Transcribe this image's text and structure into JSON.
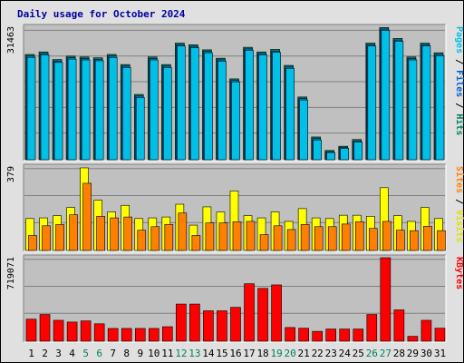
{
  "title": "Daily usage for October 2024",
  "days": [
    "1",
    "2",
    "3",
    "4",
    "5",
    "6",
    "7",
    "8",
    "9",
    "10",
    "11",
    "12",
    "13",
    "14",
    "15",
    "16",
    "17",
    "18",
    "19",
    "20",
    "21",
    "22",
    "23",
    "24",
    "25",
    "26",
    "27",
    "28",
    "29",
    "30",
    "31"
  ],
  "weekend_days": [
    "5",
    "6",
    "12",
    "13",
    "19",
    "20",
    "26",
    "27"
  ],
  "colors": {
    "background": "#e0e0e0",
    "panel": "#c0c0c0",
    "grid": "#808080",
    "pages": "#00c0e8",
    "pages_edge": "#0060a0",
    "files": "#0080ff",
    "hits": "#00805c",
    "sites": "#ff8000",
    "visits": "#ffff00",
    "kbytes": "#ff0000",
    "weekday_label": "#000000",
    "weekend_label": "#008060"
  },
  "right_labels": {
    "hits_panel": [
      {
        "text": "Pages",
        "color": "#00c0e8"
      },
      {
        "text": " / ",
        "color": "#000000"
      },
      {
        "text": "Files",
        "color": "#0060d0"
      },
      {
        "text": " / ",
        "color": "#000000"
      },
      {
        "text": "Hits",
        "color": "#008060"
      }
    ],
    "visits_panel": [
      {
        "text": "Sites",
        "color": "#ff8000"
      },
      {
        "text": " / ",
        "color": "#000000"
      },
      {
        "text": "Visits",
        "color": "#e0e000"
      }
    ],
    "kbytes_panel": [
      {
        "text": "KBytes",
        "color": "#ff0000"
      }
    ]
  },
  "chart_data": [
    {
      "type": "bar",
      "name": "hits-files-pages",
      "ymax_label": "31463",
      "ylim": [
        0,
        31463
      ],
      "categories": [
        "1",
        "2",
        "3",
        "4",
        "5",
        "6",
        "7",
        "8",
        "9",
        "10",
        "11",
        "12",
        "13",
        "14",
        "15",
        "16",
        "17",
        "18",
        "19",
        "20",
        "21",
        "22",
        "23",
        "24",
        "25",
        "26",
        "27",
        "28",
        "29",
        "30",
        "31"
      ],
      "series": [
        {
          "name": "Hits",
          "values": [
            25000,
            25600,
            23800,
            24600,
            24400,
            24200,
            25000,
            22600,
            15500,
            24400,
            22600,
            27700,
            27300,
            26100,
            24100,
            19200,
            26700,
            25600,
            26200,
            22400,
            14900,
            5400,
            2200,
            3200,
            4800,
            27700,
            31400,
            28800,
            24400,
            27700,
            25400
          ]
        },
        {
          "name": "Files",
          "values": [
            24600,
            25200,
            23400,
            24200,
            24000,
            23800,
            24600,
            22200,
            15100,
            24000,
            22200,
            27300,
            26900,
            25700,
            23700,
            18800,
            26300,
            25200,
            25800,
            22000,
            14500,
            5000,
            1900,
            2900,
            4400,
            27300,
            31000,
            28400,
            24000,
            27300,
            25000
          ]
        },
        {
          "name": "Pages",
          "values": [
            24300,
            24900,
            23100,
            23900,
            23700,
            23500,
            24300,
            21900,
            14800,
            23700,
            21900,
            27000,
            26600,
            25400,
            23400,
            18500,
            26000,
            24900,
            25500,
            21700,
            14200,
            4700,
            1700,
            2700,
            4200,
            27000,
            30700,
            28100,
            23700,
            27000,
            24700
          ]
        }
      ]
    },
    {
      "type": "bar",
      "name": "visits-sites",
      "ymax_label": "379",
      "ylim": [
        0,
        379
      ],
      "categories": [
        "1",
        "2",
        "3",
        "4",
        "5",
        "6",
        "7",
        "8",
        "9",
        "10",
        "11",
        "12",
        "13",
        "14",
        "15",
        "16",
        "17",
        "18",
        "19",
        "20",
        "21",
        "22",
        "23",
        "24",
        "25",
        "26",
        "27",
        "28",
        "29",
        "30",
        "31"
      ],
      "series": [
        {
          "name": "Visits",
          "values": [
            145,
            148,
            158,
            195,
            375,
            228,
            175,
            205,
            145,
            148,
            152,
            210,
            115,
            198,
            175,
            270,
            158,
            148,
            175,
            132,
            190,
            148,
            145,
            160,
            160,
            155,
            285,
            158,
            132,
            195,
            145
          ]
        },
        {
          "name": "Sites",
          "values": [
            68,
            112,
            118,
            162,
            305,
            155,
            148,
            152,
            92,
            108,
            118,
            170,
            68,
            125,
            125,
            130,
            132,
            72,
            112,
            95,
            118,
            108,
            108,
            120,
            130,
            100,
            132,
            92,
            90,
            110,
            90
          ]
        }
      ]
    },
    {
      "type": "bar",
      "name": "kbytes",
      "ymax_label": "719071",
      "ylim": [
        0,
        719071
      ],
      "categories": [
        "1",
        "2",
        "3",
        "4",
        "5",
        "6",
        "7",
        "8",
        "9",
        "10",
        "11",
        "12",
        "13",
        "14",
        "15",
        "16",
        "17",
        "18",
        "19",
        "20",
        "21",
        "22",
        "23",
        "24",
        "25",
        "26",
        "27",
        "28",
        "29",
        "30",
        "31"
      ],
      "series": [
        {
          "name": "KBytes",
          "values": [
            190000,
            230000,
            180000,
            165000,
            175000,
            150000,
            110000,
            110000,
            110000,
            110000,
            125000,
            320000,
            320000,
            262000,
            262000,
            292000,
            495000,
            455000,
            485000,
            118000,
            112000,
            85000,
            105000,
            105000,
            105000,
            230000,
            719000,
            270000,
            42000,
            180000,
            112000
          ]
        }
      ]
    }
  ]
}
